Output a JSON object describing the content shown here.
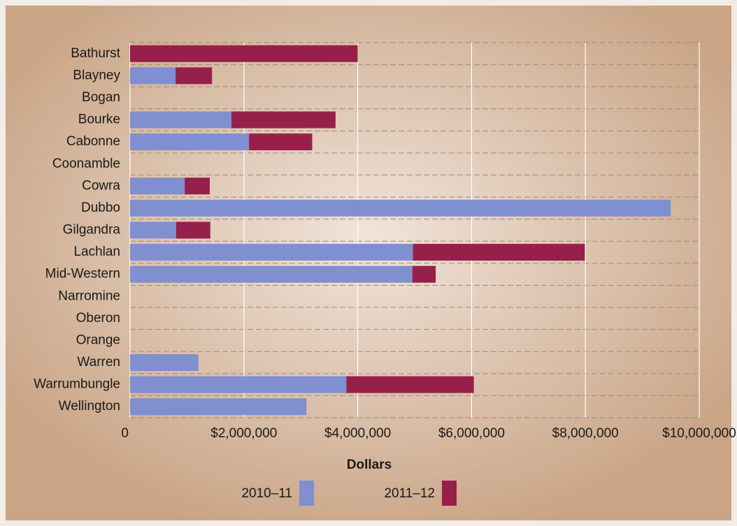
{
  "chart_data": {
    "type": "bar",
    "orientation": "horizontal",
    "stacked": true,
    "x_label": "Dollars",
    "categories": [
      "Bathurst",
      "Blayney",
      "Bogan",
      "Bourke",
      "Cabonne",
      "Coonamble",
      "Cowra",
      "Dubbo",
      "Gilgandra",
      "Lachlan",
      "Mid-Western",
      "Narromine",
      "Oberon",
      "Orange",
      "Warren",
      "Warrumbungle",
      "Wellington"
    ],
    "series": [
      {
        "name": "2010–11",
        "color": "#7f8fd0",
        "values": [
          0,
          800000,
          0,
          1780000,
          2090000,
          0,
          960000,
          9500000,
          810000,
          4970000,
          4960000,
          0,
          0,
          0,
          1200000,
          3800000,
          3100000
        ]
      },
      {
        "name": "2011–12",
        "color": "#96204a",
        "values": [
          4000000,
          640000,
          0,
          1830000,
          1110000,
          0,
          440000,
          0,
          600000,
          3020000,
          410000,
          0,
          0,
          0,
          0,
          2240000,
          0
        ]
      }
    ],
    "xlim": [
      0,
      10000000
    ],
    "xticks": [
      0,
      {
        "value": 2000000,
        "label": "$2,000,000"
      },
      {
        "value": 4000000,
        "label": "$4,000,000"
      },
      {
        "value": 6000000,
        "label": "$6,000,000"
      },
      {
        "value": 8000000,
        "label": "$8,000,000"
      },
      {
        "value": 10000000,
        "label": "$10,000,000"
      }
    ],
    "grid": true,
    "legend": "bottom"
  }
}
